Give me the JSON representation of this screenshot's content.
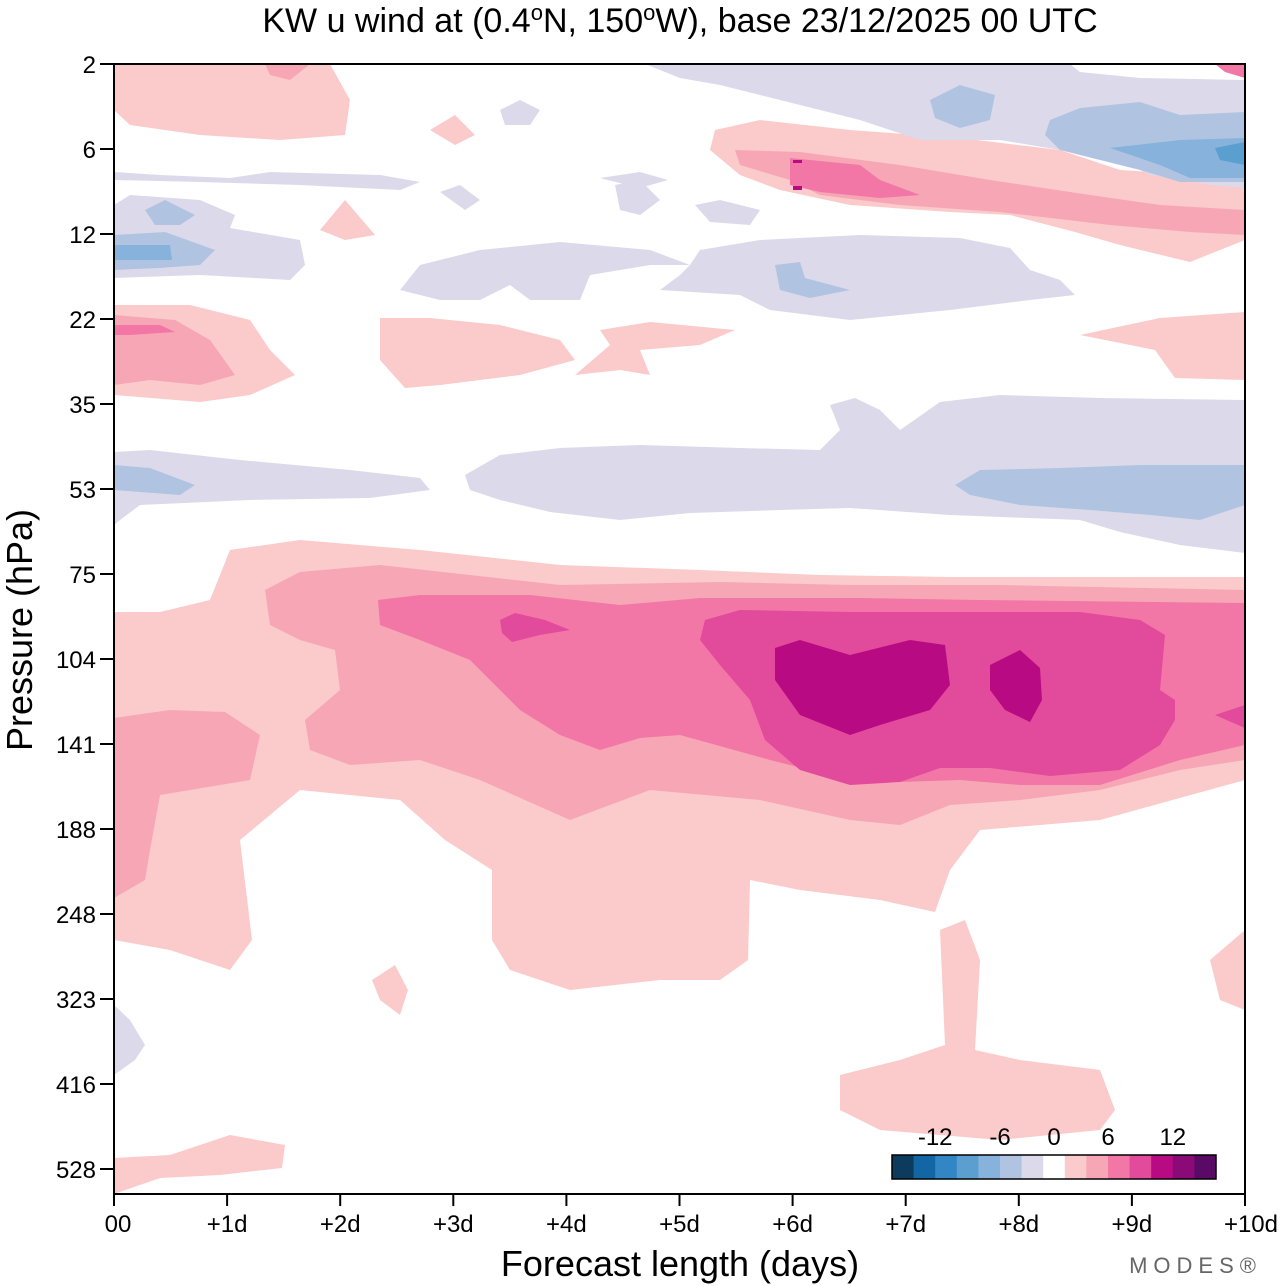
{
  "chart_data": {
    "type": "heatmap",
    "subtype": "filled-contour",
    "title": "KW u wind at (0.4°N, 150°W),  base 23/12/2025  00 UTC",
    "title_parts": {
      "main": "KW u wind at (0.4",
      "deg1": "o",
      "mid": "N, 150",
      "deg2": "o",
      "tail": "W),  base 23/12/2025  00 UTC"
    },
    "xlabel": "Forecast length (days)",
    "ylabel": "Pressure (hPa)",
    "x_ticks": [
      "00",
      "+1d",
      "+2d",
      "+3d",
      "+4d",
      "+5d",
      "+6d",
      "+7d",
      "+8d",
      "+9d",
      "+10d"
    ],
    "xlim": [
      0,
      10
    ],
    "y_ticks": [
      "2",
      "6",
      "12",
      "22",
      "35",
      "53",
      "75",
      "104",
      "141",
      "188",
      "248",
      "323",
      "416",
      "528"
    ],
    "y_scale": "log-pressure (top = 2 hPa, bottom ~ 650 hPa)",
    "colorbar": {
      "labels": [
        "-12",
        "-6",
        "0",
        "6",
        "12"
      ],
      "levels": [
        -16,
        -14,
        -12,
        -10,
        -8,
        -6,
        -4,
        -2,
        2,
        4,
        6,
        8,
        10,
        12,
        14,
        16
      ],
      "colors": [
        "#0d3b5e",
        "#1166a3",
        "#3286c4",
        "#5b9fd0",
        "#86b2db",
        "#b0c4e2",
        "#dcdaea",
        "#ffffff",
        "#fbcaca",
        "#f7a6b6",
        "#f277a6",
        "#e24a9c",
        "#b80a82",
        "#8a0a78",
        "#5a0a66"
      ]
    },
    "approx_features": [
      {
        "desc": "strong westerly maximum",
        "pressure_hPa": [
          90,
          150
        ],
        "days": [
          5.5,
          8.5
        ],
        "value": ">12 m/s"
      },
      {
        "desc": "easterly band",
        "pressure_hPa": [
          40,
          65
        ],
        "days": [
          0,
          10
        ],
        "value": "-2 to -6 m/s"
      },
      {
        "desc": "easterly core upper stratosphere",
        "pressure_hPa": [
          5,
          8
        ],
        "days": [
          9,
          10
        ],
        "value": "~-8 m/s"
      }
    ],
    "brand": "MODES®"
  }
}
